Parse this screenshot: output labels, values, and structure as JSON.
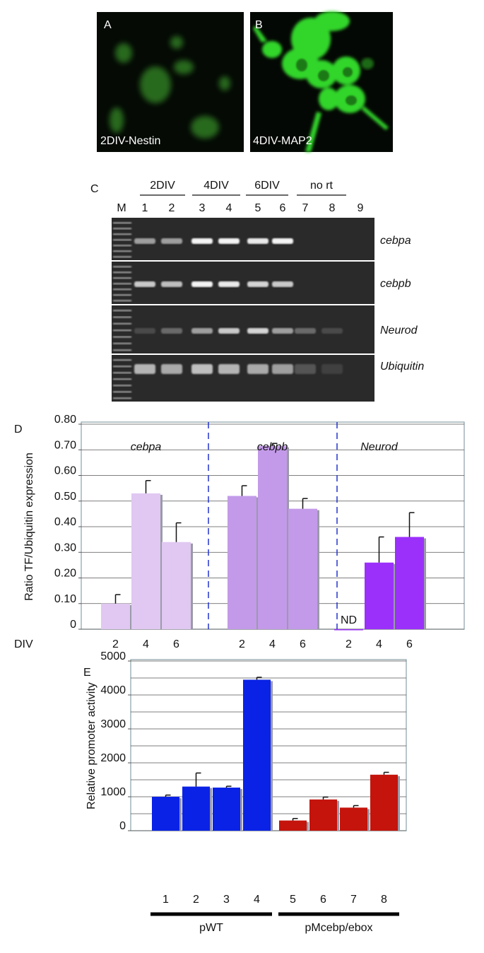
{
  "panels": {
    "A": {
      "label": "A",
      "caption": "2DIV-Nestin"
    },
    "B": {
      "label": "B",
      "caption": "4DIV-MAP2"
    },
    "C": {
      "label": "C",
      "groups": [
        "2DIV",
        "4DIV",
        "6DIV",
        "no rt"
      ],
      "lanes": [
        "M",
        "1",
        "2",
        "3",
        "4",
        "5",
        "6",
        "7",
        "8",
        "9"
      ],
      "genes": [
        "cebpa",
        "cebpb",
        "Neurod",
        "Ubiquitin"
      ]
    }
  },
  "chart_data": [
    {
      "type": "grouped_bar",
      "panel_label": "D",
      "y_label": "Ratio TF/Ubiquitin expression",
      "x_label": "DIV",
      "ylim": [
        0,
        0.8
      ],
      "yticks": [
        0,
        {
          "value": 0.1,
          "label": "0.10"
        },
        {
          "value": 0.2,
          "label": "0.20"
        },
        {
          "value": 0.3,
          "label": "0.30"
        },
        {
          "value": 0.4,
          "label": "0.40"
        },
        {
          "value": 0.5,
          "label": "0.50"
        },
        {
          "value": 0.6,
          "label": "0.60"
        },
        {
          "value": 0.7,
          "label": "0.70"
        },
        {
          "value": 0.8,
          "label": "0.80"
        }
      ],
      "grid": true,
      "group_dividers": true,
      "groups": [
        {
          "name": "cebpa",
          "color": "#e0c8f2",
          "categories": [
            "2",
            "4",
            "6"
          ],
          "values": [
            0.1,
            0.53,
            0.34
          ],
          "errors": [
            0.035,
            0.05,
            0.075
          ]
        },
        {
          "name": "cebpb",
          "color": "#c39ae9",
          "categories": [
            "2",
            "4",
            "6"
          ],
          "values": [
            0.52,
            0.715,
            0.47
          ],
          "errors": [
            0.04,
            0.01,
            0.04
          ]
        },
        {
          "name": "Neurod",
          "color": "#9b30fa",
          "categories": [
            "2",
            "4",
            "6"
          ],
          "values": [
            0,
            0.26,
            0.36
          ],
          "errors": [
            null,
            0.1,
            0.095
          ],
          "value_labels": [
            "ND",
            null,
            null
          ]
        }
      ]
    },
    {
      "type": "grouped_bar",
      "panel_label": "E",
      "y_label": "Relative promoter activity",
      "ylim": [
        0,
        5000
      ],
      "yticks": [
        0,
        1000,
        2000,
        3000,
        4000,
        5000
      ],
      "yticks_minor": [
        500,
        1500,
        2500,
        3500,
        4500
      ],
      "grid": true,
      "group_dividers": false,
      "groups": [
        {
          "name": "pWT",
          "color": "#0a22e6",
          "categories": [
            "1",
            "2",
            "3",
            "4"
          ],
          "values": [
            1000,
            1300,
            1270,
            4450
          ],
          "errors": [
            50,
            400,
            40,
            70
          ]
        },
        {
          "name": "pMcebp/ebox",
          "color": "#c4140c",
          "categories": [
            "5",
            "6",
            "7",
            "8"
          ],
          "values": [
            300,
            920,
            680,
            1650
          ],
          "errors": [
            60,
            70,
            60,
            70
          ]
        }
      ]
    }
  ]
}
